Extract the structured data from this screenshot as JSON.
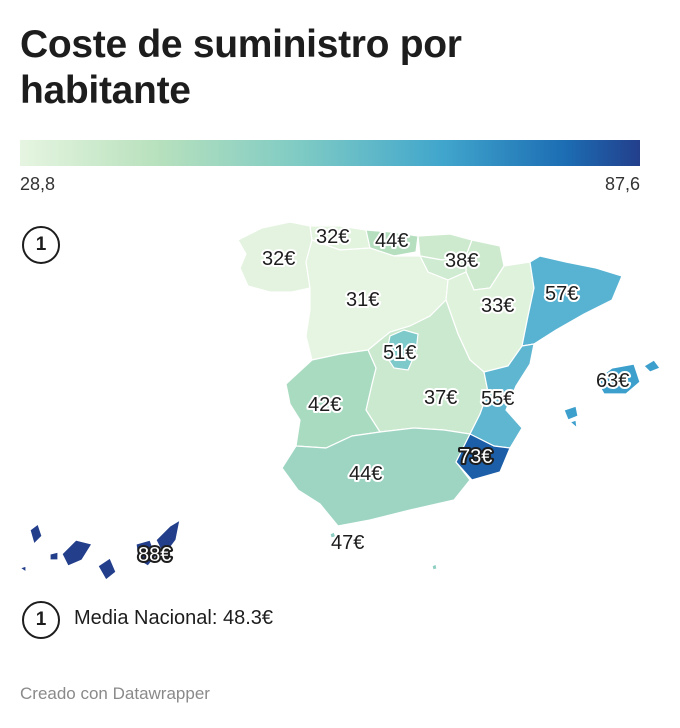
{
  "title": "Coste de suministro por habitante",
  "legend": {
    "min": "28,8",
    "max": "87,6",
    "colors": [
      "#e6f5e1",
      "#b8e1bd",
      "#7fcbc4",
      "#41a6cc",
      "#1c6db3",
      "#233f8c"
    ]
  },
  "annotation_marker": "1",
  "note": {
    "marker": "1",
    "text": "Media Nacional: 48.3€"
  },
  "credit": "Creado con Datawrapper",
  "regions": [
    {
      "name": "Galicia",
      "value": 32,
      "label": "32€",
      "color": "#e3f3df"
    },
    {
      "name": "Asturias",
      "value": 32,
      "label": "32€",
      "color": "#e2f3de"
    },
    {
      "name": "Cantabria",
      "value": 44,
      "label": "44€",
      "color": "#b6dfbf"
    },
    {
      "name": "País Vasco",
      "value": 38,
      "label": "38€",
      "color": "#cdeacf"
    },
    {
      "name": "Navarra",
      "value": 38,
      "label": "",
      "color": "#cdeacf"
    },
    {
      "name": "La Rioja",
      "value": 38,
      "label": "",
      "color": "#cfebd1"
    },
    {
      "name": "Castilla y León",
      "value": 31,
      "label": "31€",
      "color": "#e5f5e1"
    },
    {
      "name": "Aragón",
      "value": 33,
      "label": "33€",
      "color": "#dff2dc"
    },
    {
      "name": "Cataluña",
      "value": 57,
      "label": "57€",
      "color": "#58b3d3"
    },
    {
      "name": "Madrid",
      "value": 51,
      "label": "51€",
      "color": "#7ec9c9"
    },
    {
      "name": "Castilla-La Mancha",
      "value": 37,
      "label": "37€",
      "color": "#cbe9cf"
    },
    {
      "name": "Comunidad Valenciana",
      "value": 55,
      "label": "55€",
      "color": "#5fb6d1"
    },
    {
      "name": "Extremadura",
      "value": 42,
      "label": "42€",
      "color": "#a9dbc1"
    },
    {
      "name": "Andalucía",
      "value": 44,
      "label": "44€",
      "color": "#9dd5c2"
    },
    {
      "name": "Murcia",
      "value": 73,
      "label": "73€",
      "color": "#1c5ea8"
    },
    {
      "name": "Illes Balears",
      "value": 63,
      "label": "63€",
      "color": "#3d9fcc"
    },
    {
      "name": "Canarias",
      "value": 88,
      "label": "88€",
      "color": "#233f8c"
    },
    {
      "name": "Ceuta",
      "value": 47,
      "label": "47€",
      "color": "#8fcfc3"
    },
    {
      "name": "Melilla",
      "value": 47,
      "label": "",
      "color": "#8fcfc3"
    }
  ]
}
